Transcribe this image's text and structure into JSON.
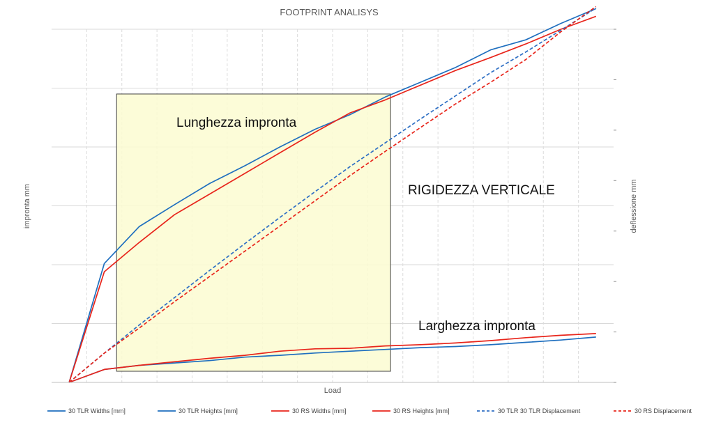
{
  "chart_data": {
    "type": "line",
    "title": "FOOTPRINT ANALISYS",
    "xlabel": "Load",
    "ylabel_left": "impronta mm",
    "ylabel_right": "deflessione mm",
    "grid": true,
    "tick_labels_visible": false,
    "legend_placement": "bottom",
    "x": [
      0,
      1,
      2,
      3,
      4,
      5,
      6,
      7,
      8,
      9,
      10,
      11,
      12,
      13,
      14,
      15
    ],
    "xlim": [
      -0.5,
      15.5
    ],
    "ylim_left": [
      0,
      6
    ],
    "ylim_right": [
      0,
      7
    ],
    "series": [
      {
        "name": "30 TLR  Widths [mm]",
        "axis": "left",
        "style": "solid",
        "color": "#1f6fbf",
        "values": [
          0.0,
          0.22,
          0.29,
          0.33,
          0.37,
          0.43,
          0.46,
          0.5,
          0.53,
          0.56,
          0.59,
          0.61,
          0.64,
          0.68,
          0.72,
          0.77
        ]
      },
      {
        "name": "30 TLR  Heights [mm]",
        "axis": "left",
        "style": "solid",
        "color": "#1f6fbf",
        "values": [
          0.0,
          2.02,
          2.65,
          3.02,
          3.38,
          3.68,
          4.0,
          4.3,
          4.55,
          4.85,
          5.1,
          5.35,
          5.65,
          5.82,
          6.1,
          6.35
        ]
      },
      {
        "name": "30 RS  Widths [mm]",
        "axis": "left",
        "style": "solid",
        "color": "#e8251b",
        "values": [
          0.0,
          0.22,
          0.29,
          0.35,
          0.41,
          0.46,
          0.53,
          0.57,
          0.58,
          0.62,
          0.64,
          0.67,
          0.71,
          0.76,
          0.8,
          0.83
        ]
      },
      {
        "name": "30 RS  Heights [mm]",
        "axis": "left",
        "style": "solid",
        "color": "#e8251b",
        "values": [
          0.0,
          1.88,
          2.38,
          2.85,
          3.2,
          3.55,
          3.9,
          4.25,
          4.58,
          4.8,
          5.05,
          5.3,
          5.52,
          5.75,
          6.0,
          6.22
        ]
      },
      {
        "name": "30 TLR 30 TLR Displacement",
        "axis": "right",
        "style": "dashed",
        "color": "#2e6fc4",
        "values": [
          0.0,
          0.58,
          1.14,
          1.68,
          2.22,
          2.75,
          3.27,
          3.78,
          4.28,
          4.75,
          5.22,
          5.68,
          6.14,
          6.55,
          6.98,
          7.42
        ]
      },
      {
        "name": "30 RS  Displacement",
        "axis": "right",
        "style": "dashed",
        "color": "#e8251b",
        "values": [
          0.0,
          0.58,
          1.08,
          1.6,
          2.1,
          2.6,
          3.1,
          3.6,
          4.1,
          4.58,
          5.05,
          5.52,
          5.95,
          6.4,
          6.95,
          7.45
        ]
      }
    ],
    "annotations": [
      {
        "text": "Lunghezza impronta"
      },
      {
        "text": "RIGIDEZZA VERTICALE"
      },
      {
        "text": "Larghezza impronta"
      }
    ],
    "highlight_region": {
      "x_from": 1.35,
      "x_to": 9.15,
      "y_to": 4.9,
      "fill": "#fbfbd1",
      "stroke": "#404040"
    }
  }
}
